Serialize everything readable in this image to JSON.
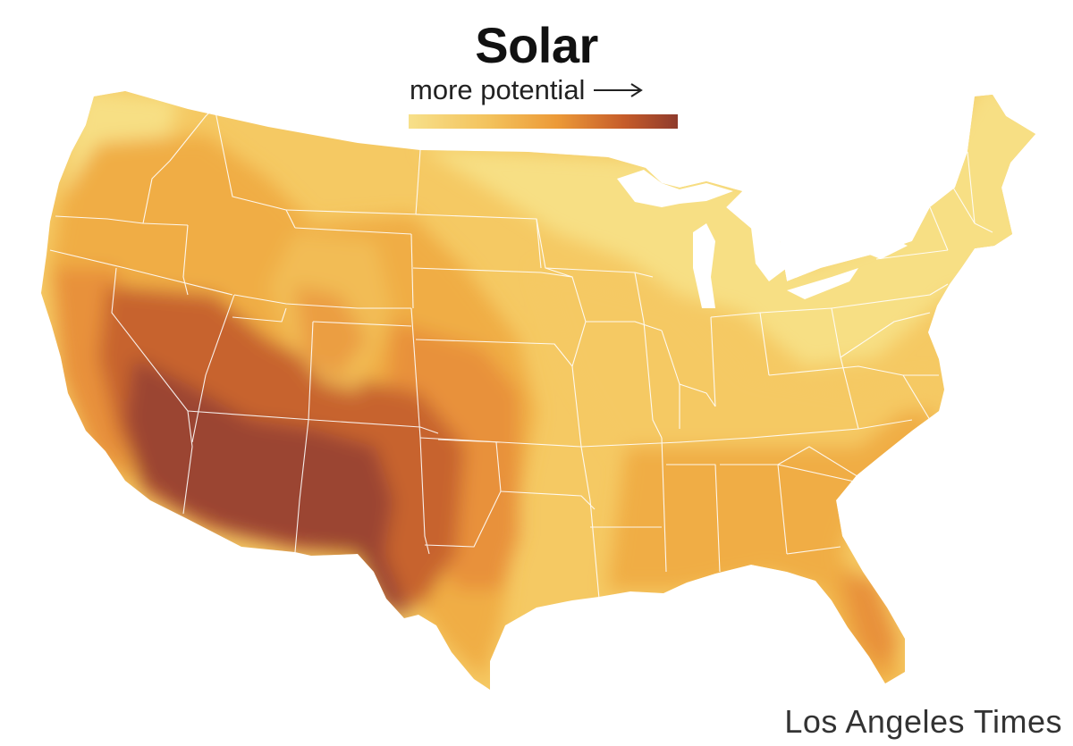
{
  "title": "Solar",
  "legend": {
    "label": "more potential",
    "arrow_icon": "right-arrow-icon",
    "gradient": [
      "#f7e08a",
      "#f3c25c",
      "#ec9a38",
      "#c65c2a",
      "#8f3b2c"
    ]
  },
  "credit": "Los Angeles Times",
  "colors": {
    "low": "#f7df84",
    "mid_low": "#f5c963",
    "mid": "#f0ad45",
    "mid_high": "#e8913a",
    "high": "#c7642f",
    "highest": "#9b4430",
    "state_lines": "#ffffff"
  }
}
